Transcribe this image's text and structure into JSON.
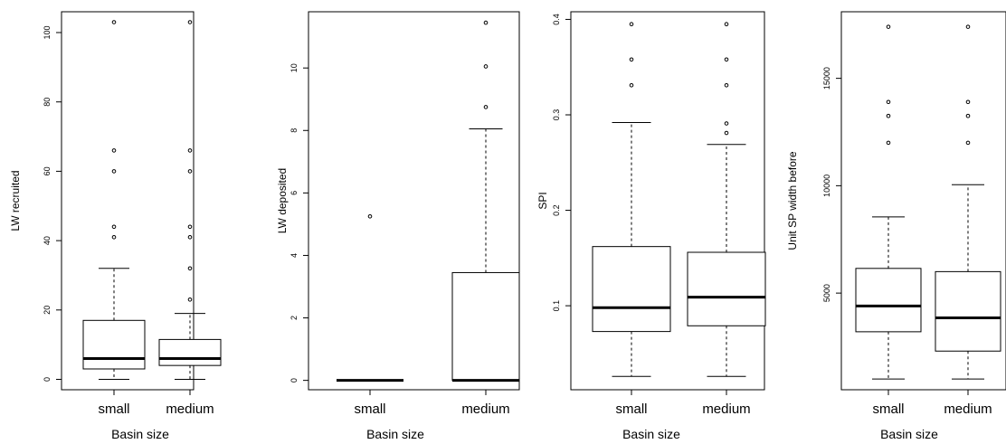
{
  "chart_data": [
    {
      "type": "boxplot",
      "ylabel": "LW recruited",
      "xlabel": "Basin size",
      "categories": [
        "small",
        "medium"
      ],
      "ylim": [
        -3,
        106
      ],
      "yticks": [
        0,
        20,
        40,
        60,
        80,
        100
      ],
      "yticklabels": [
        "0",
        "20",
        "40",
        "60",
        "80",
        "100"
      ],
      "boxes": [
        {
          "category": "small",
          "lower_whisker": 0,
          "q1": 3,
          "median": 6,
          "q3": 17,
          "upper_whisker": 32,
          "outliers": [
            41,
            44,
            60,
            66,
            103
          ]
        },
        {
          "category": "medium",
          "lower_whisker": 0,
          "q1": 4,
          "median": 6,
          "q3": 11.5,
          "upper_whisker": 19,
          "outliers": [
            23,
            32,
            41,
            44,
            60,
            66,
            103
          ]
        }
      ]
    },
    {
      "type": "boxplot",
      "ylabel": "LW deposited",
      "xlabel": "Basin size",
      "categories": [
        "small",
        "medium"
      ],
      "ylim": [
        -0.3,
        11.8
      ],
      "yticks": [
        0,
        2,
        4,
        6,
        8,
        10
      ],
      "yticklabels": [
        "0",
        "2",
        "4",
        "6",
        "8",
        "10"
      ],
      "boxes": [
        {
          "category": "small",
          "lower_whisker": 0,
          "q1": 0,
          "median": 0,
          "q3": 0,
          "upper_whisker": 0,
          "outliers": [
            5.25
          ]
        },
        {
          "category": "medium",
          "lower_whisker": 0,
          "q1": 0,
          "median": 0,
          "q3": 3.45,
          "upper_whisker": 8.05,
          "outliers": [
            8.75,
            10.05,
            11.45
          ]
        }
      ]
    },
    {
      "type": "boxplot",
      "ylabel": "SPI",
      "xlabel": "Basin size",
      "categories": [
        "small",
        "medium"
      ],
      "ylim": [
        0.012,
        0.408
      ],
      "yticks": [
        0.1,
        0.2,
        0.3,
        0.4
      ],
      "yticklabels": [
        "0.1",
        "0.2",
        "0.3",
        "0.4"
      ],
      "boxes": [
        {
          "category": "small",
          "lower_whisker": 0.026,
          "q1": 0.073,
          "median": 0.098,
          "q3": 0.162,
          "upper_whisker": 0.292,
          "outliers": [
            0.331,
            0.358,
            0.395
          ]
        },
        {
          "category": "medium",
          "lower_whisker": 0.026,
          "q1": 0.079,
          "median": 0.109,
          "q3": 0.156,
          "upper_whisker": 0.269,
          "outliers": [
            0.281,
            0.291,
            0.331,
            0.358,
            0.395
          ]
        }
      ]
    },
    {
      "type": "boxplot",
      "ylabel": "Unit SP width before",
      "xlabel": "Basin size",
      "categories": [
        "small",
        "medium"
      ],
      "ylim": [
        500,
        18100
      ],
      "yticks": [
        5000,
        10000,
        15000
      ],
      "yticklabels": [
        "5000",
        "10000",
        "15000"
      ],
      "boxes": [
        {
          "category": "small",
          "lower_whisker": 1000,
          "q1": 3200,
          "median": 4400,
          "q3": 6150,
          "upper_whisker": 8550,
          "outliers": [
            12000,
            13250,
            13900,
            17400
          ]
        },
        {
          "category": "medium",
          "lower_whisker": 1000,
          "q1": 2300,
          "median": 3850,
          "q3": 6000,
          "upper_whisker": 10050,
          "outliers": [
            12000,
            13250,
            13900,
            17400
          ]
        }
      ]
    }
  ]
}
